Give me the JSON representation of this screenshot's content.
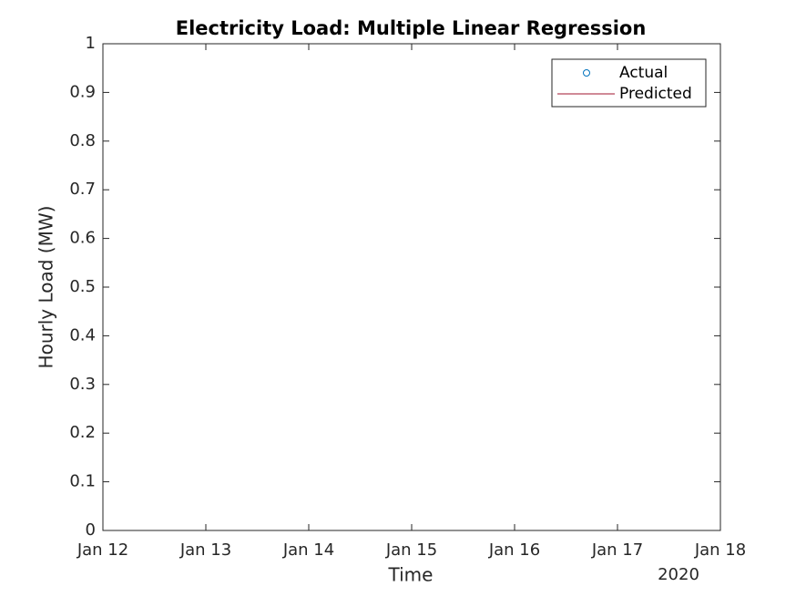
{
  "chart_data": {
    "type": "line",
    "title": "Electricity Load: Multiple Linear Regression",
    "xlabel": "Time",
    "ylabel": "Hourly Load (MW)",
    "x_secondary_label": "2020",
    "x": [],
    "series": [
      {
        "name": "Actual",
        "color": "#0072bd",
        "marker": "circle",
        "values": []
      },
      {
        "name": "Predicted",
        "color": "#a2142f",
        "values": []
      }
    ],
    "xlim": [
      {
        "value": "2020-01-12",
        "label": "Jan 12"
      },
      {
        "value": "2020-01-18",
        "label": "Jan 18"
      }
    ],
    "xticks": [
      {
        "value": "2020-01-12",
        "label": "Jan 12"
      },
      {
        "value": "2020-01-13",
        "label": "Jan 13"
      },
      {
        "value": "2020-01-14",
        "label": "Jan 14"
      },
      {
        "value": "2020-01-15",
        "label": "Jan 15"
      },
      {
        "value": "2020-01-16",
        "label": "Jan 16"
      },
      {
        "value": "2020-01-17",
        "label": "Jan 17"
      },
      {
        "value": "2020-01-18",
        "label": "Jan 18"
      }
    ],
    "ylim": [
      0,
      1
    ],
    "yticks": [
      0,
      0.1,
      0.2,
      0.3,
      0.4,
      0.5,
      0.6,
      0.7,
      0.8,
      0.9,
      1
    ],
    "legend": "top-right",
    "grid": false
  }
}
